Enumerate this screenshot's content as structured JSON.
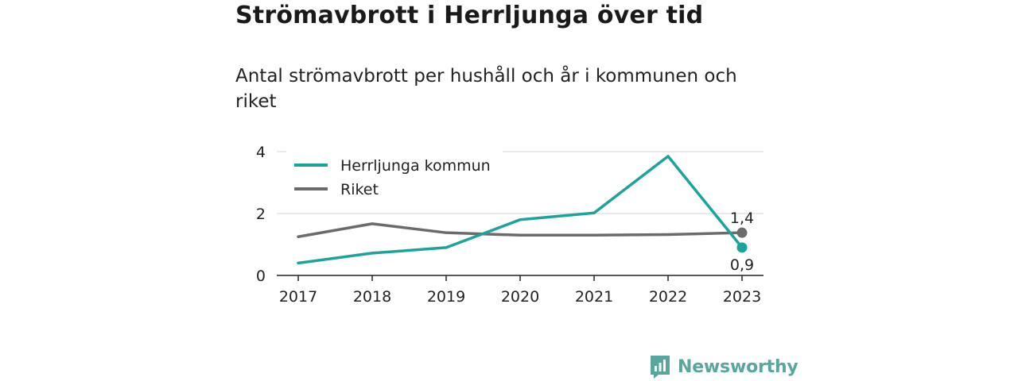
{
  "title": "Strömavbrott i Herrljunga över tid",
  "subtitle": "Antal strömavbrott per hushåll och år i kommunen och riket",
  "brand": {
    "name": "Newsworthy",
    "color": "#57a79f",
    "icon": "bar-chart-logo-icon"
  },
  "chart_data": {
    "type": "line",
    "categories": [
      "2017",
      "2018",
      "2019",
      "2020",
      "2021",
      "2022",
      "2023"
    ],
    "yticks": [
      "0",
      "2",
      "4"
    ],
    "ylim": [
      0,
      4
    ],
    "grid": true,
    "legend_position": "top-left",
    "series": [
      {
        "name": "Herrljunga kommun",
        "color": "#1ba39c",
        "values": [
          0.4,
          0.72,
          0.9,
          1.8,
          2.02,
          3.85,
          0.9
        ],
        "end_label": "0,9"
      },
      {
        "name": "Riket",
        "color": "#6b6b6b",
        "values": [
          1.25,
          1.67,
          1.38,
          1.3,
          1.3,
          1.32,
          1.38
        ],
        "end_label": "1,4"
      }
    ]
  }
}
